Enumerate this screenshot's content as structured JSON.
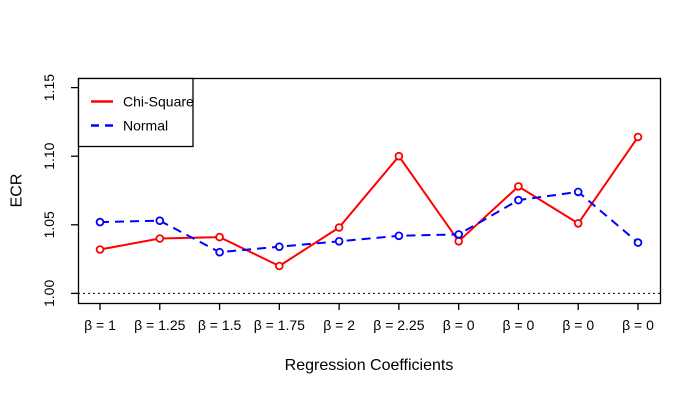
{
  "figure": {
    "background": "#ffffff",
    "axis_color": "#000000",
    "text_color": "#000000"
  },
  "chart_data": {
    "type": "line",
    "title": "",
    "xlabel": "Regression Coefficients",
    "ylabel": "ECR",
    "categories": [
      "β = 1",
      "β = 1.25",
      "β = 1.5",
      "β = 1.75",
      "β = 2",
      "β = 2.25",
      "β = 0",
      "β = 0",
      "β = 0",
      "β = 0"
    ],
    "series": [
      {
        "name": "Chi-Square",
        "color": "#ff0000",
        "line_style": "solid",
        "marker": "open-circle",
        "values": [
          1.032,
          1.04,
          1.041,
          1.02,
          1.048,
          1.1,
          1.038,
          1.078,
          1.051,
          1.114
        ]
      },
      {
        "name": "Normal",
        "color": "#0000ff",
        "line_style": "dashed",
        "marker": "open-circle",
        "values": [
          1.052,
          1.053,
          1.03,
          1.034,
          1.038,
          1.042,
          1.043,
          1.068,
          1.074,
          1.037
        ]
      }
    ],
    "y_ticks": [
      1.0,
      1.05,
      1.1,
      1.15
    ],
    "y_tick_labels": [
      "1.00",
      "1.05",
      "1.10",
      "1.15"
    ],
    "ylim": [
      0.993,
      1.157
    ],
    "reference_line": {
      "value": 1.0,
      "style": "dotted",
      "color": "#000000"
    },
    "legend": {
      "position": "top-left",
      "entries": [
        "Chi-Square",
        "Normal"
      ]
    },
    "grid": false,
    "legend_border": true
  }
}
